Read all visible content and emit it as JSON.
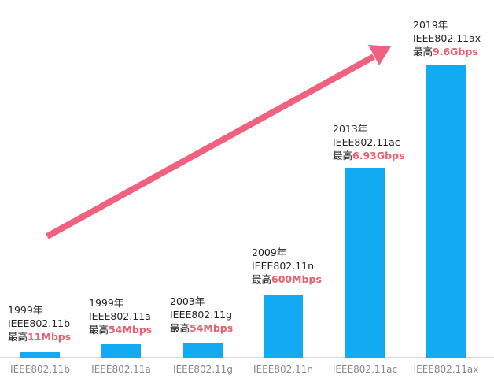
{
  "chart_data": {
    "type": "bar",
    "categories": [
      "IEEE802.11b",
      "IEEE802.11a",
      "IEEE802.11g",
      "IEEE802.11n",
      "IEEE802.11ac",
      "IEEE802.11ax"
    ],
    "values_mbps": [
      11,
      54,
      54,
      600,
      6930,
      9600
    ],
    "annotations": [
      {
        "year": "1999年",
        "standard": "IEEE802.11b",
        "prefix": "最高",
        "speed": "11Mbps"
      },
      {
        "year": "1999年",
        "standard": "IEEE802.11a",
        "prefix": "最高",
        "speed": "54Mbps"
      },
      {
        "year": "2003年",
        "standard": "IEEE802.11g",
        "prefix": "最高",
        "speed": "54Mbps"
      },
      {
        "year": "2009年",
        "standard": "IEEE802.11n",
        "prefix": "最高",
        "speed": "600Mbps"
      },
      {
        "year": "2013年",
        "standard": "IEEE802.11ac",
        "prefix": "最高",
        "speed": "6.93Gbps"
      },
      {
        "year": "2019年",
        "standard": "IEEE802.11ax",
        "prefix": "最高",
        "speed": "9.6Gbps"
      }
    ],
    "scale": "non-linear (illustrative)",
    "grid": false,
    "trend_arrow": "upward",
    "colors": {
      "bar": "#12aaf0",
      "arrow": "#f0617f",
      "speed_text": "#e8606e",
      "axis": "#cccccc",
      "tick_text": "#888888"
    }
  }
}
